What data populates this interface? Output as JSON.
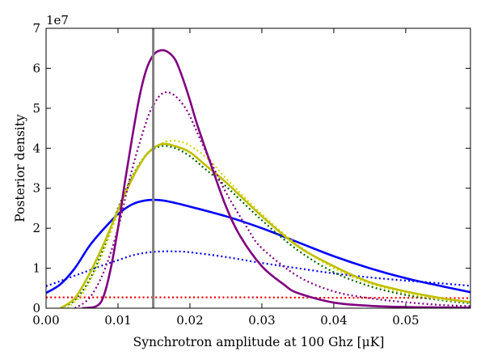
{
  "chart_data": {
    "type": "line",
    "title": "",
    "xlabel": "Synchrotron amplitude at 100 Ghz [μK]",
    "ylabel": "Posterior density",
    "y_offset_label": "1e7",
    "xlim": [
      0.0,
      0.059
    ],
    "ylim": [
      0,
      7
    ],
    "x_ticks": [
      0.0,
      0.01,
      0.02,
      0.03,
      0.04,
      0.05
    ],
    "x_tick_labels": [
      "0.00",
      "0.01",
      "0.02",
      "0.03",
      "0.04",
      "0.05"
    ],
    "y_ticks": [
      0,
      1,
      2,
      3,
      4,
      5,
      6,
      7
    ],
    "y_tick_labels": [
      "0",
      "1",
      "2",
      "3",
      "4",
      "5",
      "6",
      "7"
    ],
    "grid": false,
    "legend": "none",
    "vertical_line": {
      "x": 0.0149,
      "color": "#808080"
    },
    "series": [
      {
        "color": "#ff0000",
        "style": "dotted",
        "x": [
          0.0,
          0.01,
          0.02,
          0.03,
          0.04,
          0.05,
          0.059
        ],
        "y": [
          0.27,
          0.27,
          0.27,
          0.27,
          0.26,
          0.26,
          0.25
        ]
      },
      {
        "color": "#0000ff",
        "style": "dotted",
        "x": [
          0.0,
          0.002,
          0.005,
          0.008,
          0.01,
          0.012,
          0.014,
          0.016,
          0.018,
          0.02,
          0.025,
          0.03,
          0.035,
          0.04,
          0.045,
          0.05,
          0.055,
          0.059
        ],
        "y": [
          0.55,
          0.68,
          0.88,
          1.08,
          1.2,
          1.32,
          1.39,
          1.42,
          1.42,
          1.4,
          1.28,
          1.13,
          1.0,
          0.87,
          0.77,
          0.69,
          0.62,
          0.56
        ]
      },
      {
        "color": "#0000ff",
        "style": "solid",
        "x": [
          0.0,
          0.002,
          0.004,
          0.006,
          0.008,
          0.01,
          0.012,
          0.014,
          0.016,
          0.018,
          0.02,
          0.025,
          0.03,
          0.035,
          0.04,
          0.045,
          0.05,
          0.055,
          0.059
        ],
        "y": [
          0.38,
          0.6,
          1.0,
          1.55,
          1.98,
          2.35,
          2.6,
          2.7,
          2.7,
          2.63,
          2.54,
          2.3,
          2.0,
          1.65,
          1.3,
          1.0,
          0.75,
          0.55,
          0.4
        ]
      },
      {
        "color": "#006400",
        "style": "dotted",
        "x": [
          0.002,
          0.004,
          0.006,
          0.008,
          0.01,
          0.012,
          0.014,
          0.016,
          0.018,
          0.02,
          0.022,
          0.025,
          0.03,
          0.035,
          0.04,
          0.045,
          0.05,
          0.055,
          0.059
        ],
        "y": [
          0.0,
          0.2,
          0.7,
          1.5,
          2.5,
          3.3,
          3.85,
          4.05,
          4.0,
          3.8,
          3.5,
          3.05,
          2.2,
          1.45,
          0.9,
          0.55,
          0.33,
          0.2,
          0.12
        ]
      },
      {
        "color": "#d4d400",
        "style": "dotted",
        "x": [
          0.003,
          0.005,
          0.007,
          0.009,
          0.011,
          0.013,
          0.015,
          0.017,
          0.019,
          0.021,
          0.023,
          0.025,
          0.03,
          0.035,
          0.04,
          0.045,
          0.05,
          0.055,
          0.059
        ],
        "y": [
          0.0,
          0.35,
          1.0,
          1.9,
          2.9,
          3.6,
          4.0,
          4.18,
          4.15,
          3.95,
          3.65,
          3.25,
          2.35,
          1.58,
          1.0,
          0.62,
          0.38,
          0.22,
          0.15
        ]
      },
      {
        "color": "#bfbf00",
        "style": "solid",
        "x": [
          0.002,
          0.004,
          0.006,
          0.008,
          0.01,
          0.012,
          0.014,
          0.016,
          0.018,
          0.02,
          0.022,
          0.025,
          0.03,
          0.035,
          0.04,
          0.045,
          0.05,
          0.055,
          0.059
        ],
        "y": [
          0.0,
          0.25,
          0.85,
          1.6,
          2.45,
          3.25,
          3.85,
          4.1,
          4.05,
          3.9,
          3.6,
          3.15,
          2.3,
          1.55,
          1.05,
          0.65,
          0.42,
          0.25,
          0.15
        ]
      },
      {
        "color": "#800080",
        "style": "dotted",
        "x": [
          0.004,
          0.006,
          0.008,
          0.01,
          0.012,
          0.014,
          0.015,
          0.016,
          0.017,
          0.018,
          0.019,
          0.02,
          0.022,
          0.025,
          0.028,
          0.03,
          0.035,
          0.04,
          0.045,
          0.05,
          0.055,
          0.059
        ],
        "y": [
          0.0,
          0.25,
          0.9,
          2.0,
          3.5,
          4.7,
          5.1,
          5.35,
          5.4,
          5.3,
          5.1,
          4.8,
          4.0,
          2.9,
          2.0,
          1.5,
          0.8,
          0.42,
          0.25,
          0.15,
          0.08,
          0.05
        ]
      },
      {
        "color": "#800080",
        "style": "solid",
        "x": [
          0.005,
          0.007,
          0.008,
          0.009,
          0.01,
          0.011,
          0.012,
          0.013,
          0.014,
          0.015,
          0.016,
          0.017,
          0.018,
          0.019,
          0.02,
          0.021,
          0.023,
          0.025,
          0.027,
          0.03,
          0.033,
          0.035,
          0.04,
          0.045,
          0.05,
          0.055,
          0.059
        ],
        "y": [
          0.0,
          0.05,
          0.3,
          1.0,
          2.0,
          3.2,
          4.3,
          5.3,
          6.0,
          6.35,
          6.45,
          6.4,
          6.2,
          5.75,
          5.2,
          4.6,
          3.55,
          2.55,
          1.8,
          1.05,
          0.6,
          0.38,
          0.14,
          0.06,
          0.03,
          0.02,
          0.01
        ]
      }
    ]
  }
}
